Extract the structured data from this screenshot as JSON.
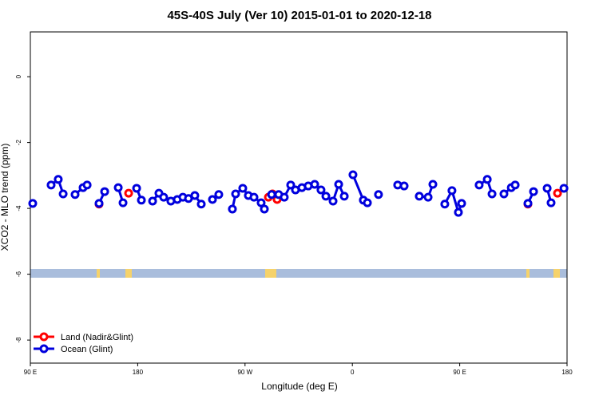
{
  "chart_data": {
    "type": "line",
    "title": "45S-40S July (Ver 10)   2015-01-01 to 2020-12-18",
    "x_label": "Longitude (deg E)",
    "y_label": "XCO2 - MLO trend (ppm)",
    "xlim": [
      90,
      540
    ],
    "ylim": [
      -8.7,
      1.36
    ],
    "xticks": [
      {
        "value": 90,
        "label": "90 E"
      },
      180,
      {
        "value": 270,
        "label": "90 W"
      },
      {
        "value": 360,
        "label": "0"
      },
      {
        "value": 450,
        "label": "90 E"
      },
      {
        "value": 540,
        "label": "180"
      }
    ],
    "yticks": [
      0,
      -2,
      -4,
      -6,
      -8
    ],
    "legend": "bottom-left",
    "series": [
      {
        "name": "Land (Nadir&Glint)",
        "color": "#ff0000",
        "x": [
          147.6,
          160,
          172.4,
          181,
          289.6,
          293,
          296.9,
          400,
          507.2,
          520,
          532
        ],
        "values": [
          -3.87,
          null,
          -3.54,
          null,
          -3.66,
          -3.56,
          -3.73,
          null,
          -3.87,
          null,
          -3.54
        ]
      },
      {
        "name": "Ocean (Glint)",
        "color": "#0000dd",
        "x": [
          92,
          100,
          107.4,
          113.4,
          117.5,
          122,
          127.5,
          134.2,
          137.6,
          143,
          147.6,
          152.3,
          158,
          163.7,
          167.7,
          173,
          179.1,
          183.1,
          188,
          192.5,
          197.8,
          201.8,
          207.8,
          213.2,
          217.9,
          222.6,
          227.9,
          233.3,
          238,
          242.7,
          248,
          254,
          259.4,
          262.1,
          268.1,
          272.8,
          277.5,
          283.5,
          286.2,
          289,
          292.3,
          298.2,
          302.9,
          308.3,
          312.3,
          317.7,
          323,
          328.4,
          333.7,
          337.8,
          343.8,
          348.5,
          353.2,
          357,
          360.5,
          369.2,
          372.6,
          377,
          381.9,
          390,
          398,
          403.4,
          410,
          416.1,
          423.5,
          427.5,
          432,
          437.5,
          443.5,
          448.9,
          451.6,
          460,
          466.3,
          473.1,
          477.1,
          482,
          487.1,
          493.2,
          496.5,
          502,
          507.2,
          511.9,
          518,
          523.3,
          526.6,
          532,
          537.4
        ],
        "values": [
          -3.85,
          null,
          -3.29,
          -3.12,
          -3.56,
          null,
          -3.58,
          -3.37,
          -3.29,
          null,
          -3.85,
          -3.49,
          null,
          -3.37,
          -3.83,
          null,
          -3.39,
          -3.75,
          null,
          -3.78,
          -3.54,
          -3.66,
          -3.78,
          -3.73,
          -3.66,
          -3.7,
          -3.61,
          -3.87,
          null,
          -3.73,
          -3.58,
          null,
          -4.02,
          -3.56,
          -3.39,
          -3.61,
          -3.66,
          -3.83,
          -4.02,
          null,
          -3.58,
          -3.58,
          -3.66,
          -3.29,
          -3.44,
          -3.37,
          -3.32,
          -3.27,
          -3.44,
          -3.63,
          -3.78,
          -3.27,
          -3.63,
          null,
          -2.98,
          -3.75,
          -3.83,
          null,
          -3.58,
          null,
          -3.29,
          -3.32,
          null,
          -3.63,
          -3.66,
          -3.27,
          null,
          -3.87,
          -3.46,
          -4.12,
          -3.85,
          null,
          -3.29,
          -3.12,
          -3.56,
          null,
          -3.56,
          -3.37,
          -3.29,
          null,
          -3.85,
          -3.49,
          null,
          -3.39,
          -3.83,
          null,
          -3.39
        ]
      }
    ]
  }
}
